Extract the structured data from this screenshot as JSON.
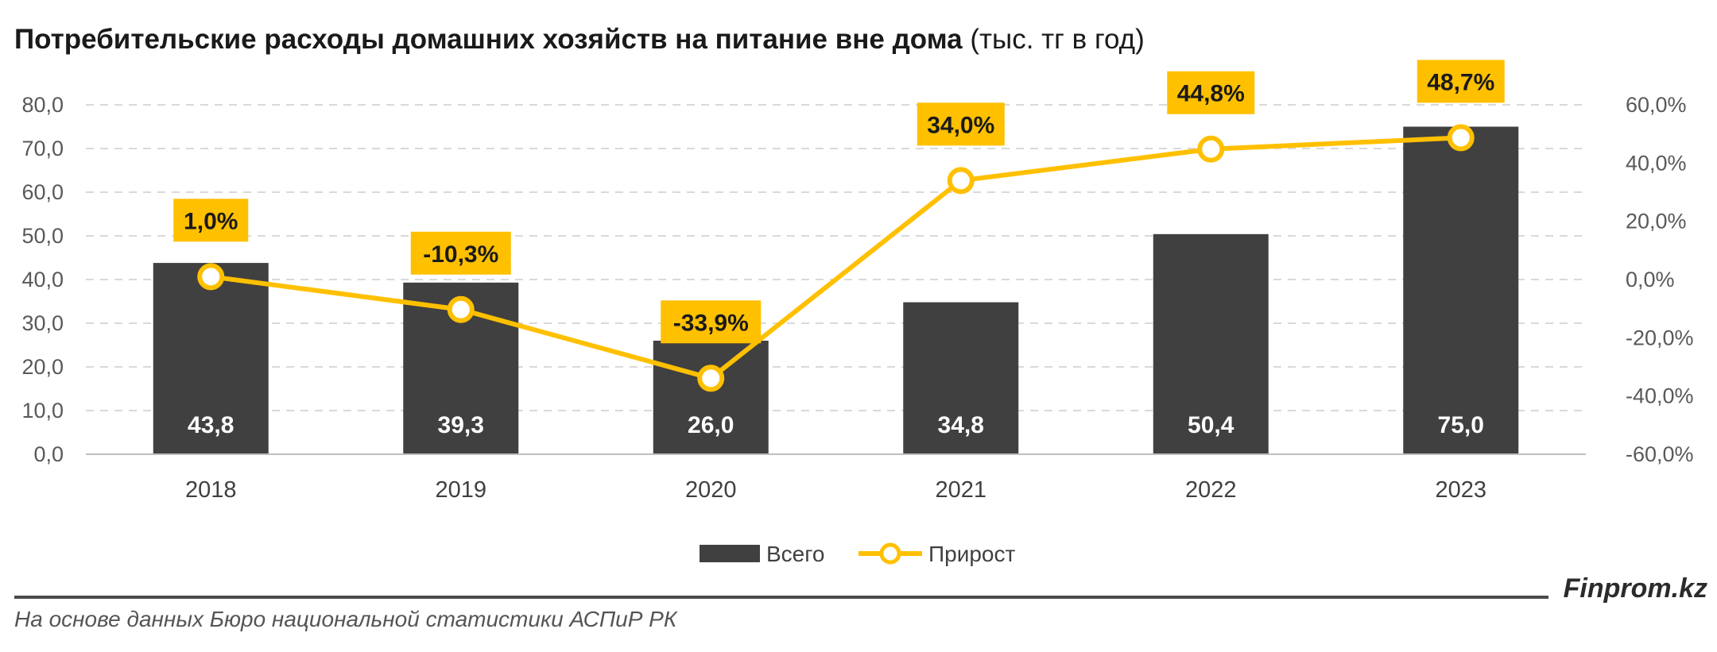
{
  "title_bold": "Потребительские расходы домашних хозяйств на питание вне дома",
  "title_unit": "(тыс. тг в год)",
  "brand": "Finprom.kz",
  "source": "На основе данных Бюро национальной статистики АСПиР РК",
  "colors": {
    "bar": "#404040",
    "line": "#FFC000",
    "label_bg": "#FFC000",
    "grid": "#D9D9D9"
  },
  "chart_data": {
    "type": "bar+line",
    "categories": [
      "2018",
      "2019",
      "2020",
      "2021",
      "2022",
      "2023"
    ],
    "series": [
      {
        "name": "Всего",
        "type": "bar",
        "axis": "left",
        "values": [
          43.8,
          39.3,
          26.0,
          34.8,
          50.4,
          75.0
        ],
        "labels": [
          "43,8",
          "39,3",
          "26,0",
          "34,8",
          "50,4",
          "75,0"
        ]
      },
      {
        "name": "Прирост",
        "type": "line",
        "axis": "right",
        "values": [
          1.0,
          -10.3,
          -33.9,
          34.0,
          44.8,
          48.7
        ],
        "labels": [
          "1,0%",
          "-10,3%",
          "-33,9%",
          "34,0%",
          "44,8%",
          "48,7%"
        ]
      }
    ],
    "y_left": {
      "min": 0,
      "max": 80,
      "step": 10,
      "tick_labels": [
        "0,0",
        "10,0",
        "20,0",
        "30,0",
        "40,0",
        "50,0",
        "60,0",
        "70,0",
        "80,0"
      ]
    },
    "y_right": {
      "min": -60,
      "max": 60,
      "step": 20,
      "tick_labels": [
        "-60,0%",
        "-40,0%",
        "-20,0%",
        "0,0%",
        "20,0%",
        "40,0%",
        "60,0%"
      ]
    },
    "grid": true,
    "legend_position": "bottom"
  }
}
